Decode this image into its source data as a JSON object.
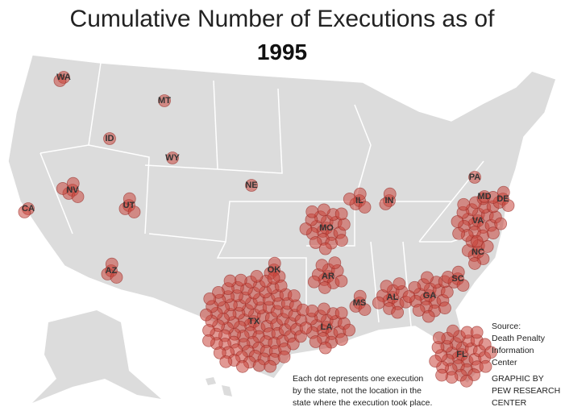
{
  "title": "Cumulative Number of Executions as of",
  "year": "1995",
  "states": [
    {
      "label": "WA",
      "count": 2
    },
    {
      "label": "MT",
      "count": 1
    },
    {
      "label": "ID",
      "count": 1
    },
    {
      "label": "WY",
      "count": 1
    },
    {
      "label": "NV",
      "count": 5
    },
    {
      "label": "CA",
      "count": 2
    },
    {
      "label": "UT",
      "count": 4
    },
    {
      "label": "NE",
      "count": 1
    },
    {
      "label": "AZ",
      "count": 4
    },
    {
      "label": "OK",
      "count": 4
    },
    {
      "label": "TX",
      "count": 104
    },
    {
      "label": "MO",
      "count": 21
    },
    {
      "label": "AR",
      "count": 11
    },
    {
      "label": "LA",
      "count": 22
    },
    {
      "label": "IL",
      "count": 5
    },
    {
      "label": "IN",
      "count": 3
    },
    {
      "label": "MS",
      "count": 4
    },
    {
      "label": "AL",
      "count": 12
    },
    {
      "label": "GA",
      "count": 20
    },
    {
      "label": "FL",
      "count": 36
    },
    {
      "label": "SC",
      "count": 5
    },
    {
      "label": "NC",
      "count": 8
    },
    {
      "label": "VA",
      "count": 24
    },
    {
      "label": "MD",
      "count": 1
    },
    {
      "label": "DE",
      "count": 5
    },
    {
      "label": "PA",
      "count": 1
    }
  ],
  "note": [
    "Each dot represents one execution",
    "by the state, not the location in the",
    "state where the execution took place."
  ],
  "source": [
    "Source:",
    "Death Penalty",
    "Information",
    "Center"
  ],
  "credit": [
    "GRAPHIC BY",
    "PEW RESEARCH",
    "CENTER"
  ]
}
